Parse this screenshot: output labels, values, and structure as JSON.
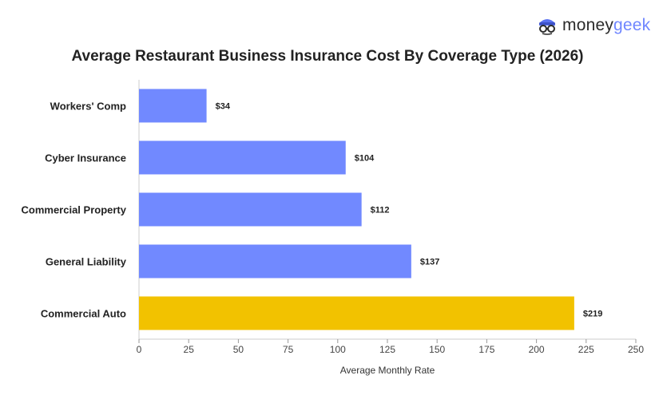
{
  "brand": {
    "part1": "money",
    "part2": "geek",
    "accent": "#6f86ff"
  },
  "chart_data": {
    "type": "bar",
    "orientation": "horizontal",
    "title": "Average Restaurant Business Insurance Cost By Coverage Type (2026)",
    "xlabel": "Average Monthly Rate",
    "ylabel": "",
    "xlim": [
      0,
      250
    ],
    "xticks": [
      0,
      25,
      50,
      75,
      100,
      125,
      150,
      175,
      200,
      225,
      250
    ],
    "grid": false,
    "categories": [
      "Workers' Comp",
      "Cyber Insurance",
      "Commercial Property",
      "General Liability",
      "Commercial Auto"
    ],
    "values": [
      34,
      104,
      112,
      137,
      219
    ],
    "value_labels": [
      "$34",
      "$104",
      "$112",
      "$137",
      "$219"
    ],
    "colors": [
      "#7189ff",
      "#7189ff",
      "#7189ff",
      "#7189ff",
      "#f2c200"
    ]
  }
}
